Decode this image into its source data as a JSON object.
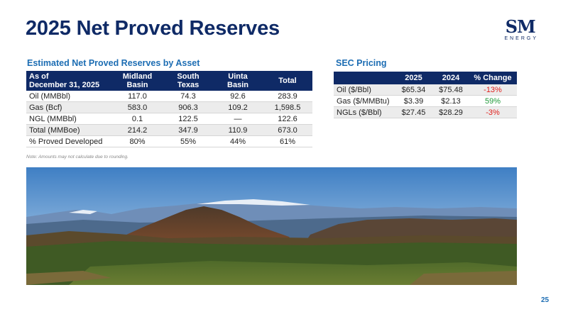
{
  "header": {
    "title": "2025 Net Proved Reserves",
    "logo": "SM",
    "logo_sub": "ENERGY"
  },
  "reserves": {
    "title": "Estimated Net Proved Reserves by Asset",
    "columns": [
      "As of\nDecember 31, 2025",
      "Midland\nBasin",
      "South\nTexas",
      "Uinta\nBasin",
      "Total"
    ],
    "rows": [
      [
        "Oil (MMBbl)",
        "117.0",
        "74.3",
        "92.6",
        "283.9"
      ],
      [
        "Gas (Bcf)",
        "583.0",
        "906.3",
        "109.2",
        "1,598.5"
      ],
      [
        "NGL (MMBbl)",
        "0.1",
        "122.5",
        "—",
        "122.6"
      ],
      [
        "Total (MMBoe)",
        "214.2",
        "347.9",
        "110.9",
        "673.0"
      ],
      [
        "% Proved Developed",
        "80%",
        "55%",
        "44%",
        "61%"
      ]
    ],
    "note": "Note: Amounts may not calculate due to rounding."
  },
  "pricing": {
    "title": "SEC Pricing",
    "columns": [
      "2025",
      "2024",
      "% Change"
    ],
    "rows": [
      [
        "Oil ($/Bbl)",
        "$65.34",
        "$75.48",
        "-13%"
      ],
      [
        "Gas ($/MMBtu)",
        "$3.39",
        "$2.13",
        "59%"
      ],
      [
        "NGLs ($/Bbl)",
        "$27.45",
        "$28.29",
        "-3%"
      ]
    ],
    "change_colors": [
      "#e0201c",
      "#1f9a3a",
      "#e0201c"
    ]
  },
  "footer": {
    "page": "25"
  }
}
